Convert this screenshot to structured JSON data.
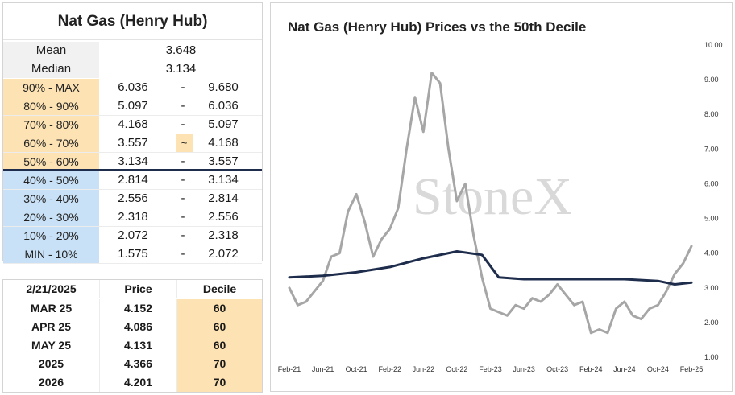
{
  "decile_table": {
    "title": "Nat Gas (Henry Hub)",
    "mean": {
      "label": "Mean",
      "value": "3.648"
    },
    "median": {
      "label": "Median",
      "value": "3.134"
    },
    "rows": [
      {
        "label": "90% - MAX",
        "low": "6.036",
        "sep": "-",
        "high": "9.680",
        "zone": "high",
        "highlight": false
      },
      {
        "label": "80% - 90%",
        "low": "5.097",
        "sep": "-",
        "high": "6.036",
        "zone": "high",
        "highlight": false
      },
      {
        "label": "70% - 80%",
        "low": "4.168",
        "sep": "-",
        "high": "5.097",
        "zone": "high",
        "highlight": false
      },
      {
        "label": "60% - 70%",
        "low": "3.557",
        "sep": "~",
        "high": "4.168",
        "zone": "high",
        "highlight": true
      },
      {
        "label": "50% - 60%",
        "low": "3.134",
        "sep": "-",
        "high": "3.557",
        "zone": "high",
        "highlight": false
      },
      {
        "label": "40% - 50%",
        "low": "2.814",
        "sep": "-",
        "high": "3.134",
        "zone": "low",
        "highlight": false
      },
      {
        "label": "30% - 40%",
        "low": "2.556",
        "sep": "-",
        "high": "2.814",
        "zone": "low",
        "highlight": false
      },
      {
        "label": "20% - 30%",
        "low": "2.318",
        "sep": "-",
        "high": "2.556",
        "zone": "low",
        "highlight": false
      },
      {
        "label": "10% - 20%",
        "low": "2.072",
        "sep": "-",
        "high": "2.318",
        "zone": "low",
        "highlight": false
      },
      {
        "label": "MIN - 10%",
        "low": "1.575",
        "sep": "-",
        "high": "2.072",
        "zone": "low",
        "highlight": false
      }
    ]
  },
  "price_table": {
    "headers": [
      "2/21/2025",
      "Price",
      "Decile"
    ],
    "rows": [
      {
        "contract": "MAR 25",
        "price": "4.152",
        "decile": "60"
      },
      {
        "contract": "APR 25",
        "price": "4.086",
        "decile": "60"
      },
      {
        "contract": "MAY 25",
        "price": "4.131",
        "decile": "60"
      },
      {
        "contract": "2025",
        "price": "4.366",
        "decile": "70"
      },
      {
        "contract": "2026",
        "price": "4.201",
        "decile": "70"
      }
    ]
  },
  "colors": {
    "price_line": "#a6a6a6",
    "decile_line": "#1f2d4d",
    "high_zone": "#fde3b4",
    "low_zone": "#c9e1f6"
  },
  "chart_data": {
    "type": "line",
    "title": "Nat Gas (Henry Hub) Prices vs the 50th Decile",
    "watermark": "StoneX",
    "x_tick_labels": [
      "Feb-21",
      "Jun-21",
      "Oct-21",
      "Feb-22",
      "Jun-22",
      "Oct-22",
      "Feb-23",
      "Jun-23",
      "Oct-23",
      "Feb-24",
      "Jun-24",
      "Oct-24",
      "Feb-25"
    ],
    "y_tick_labels": [
      "1.00",
      "2.00",
      "3.00",
      "4.00",
      "5.00",
      "6.00",
      "7.00",
      "8.00",
      "9.00",
      "10.00"
    ],
    "ylim": [
      1,
      10
    ],
    "y_axis_side": "right",
    "grid": false,
    "series": [
      {
        "role": "price",
        "x": [
          "2021-02",
          "2021-03",
          "2021-04",
          "2021-05",
          "2021-06",
          "2021-07",
          "2021-08",
          "2021-09",
          "2021-10",
          "2021-11",
          "2021-12",
          "2022-01",
          "2022-02",
          "2022-03",
          "2022-04",
          "2022-05",
          "2022-06",
          "2022-07",
          "2022-08",
          "2022-09",
          "2022-10",
          "2022-11",
          "2022-12",
          "2023-01",
          "2023-02",
          "2023-03",
          "2023-04",
          "2023-05",
          "2023-06",
          "2023-07",
          "2023-08",
          "2023-09",
          "2023-10",
          "2023-11",
          "2023-12",
          "2024-01",
          "2024-02",
          "2024-03",
          "2024-04",
          "2024-05",
          "2024-06",
          "2024-07",
          "2024-08",
          "2024-09",
          "2024-10",
          "2024-11",
          "2024-12",
          "2025-01",
          "2025-02"
        ],
        "values": [
          3.0,
          2.5,
          2.6,
          2.9,
          3.2,
          3.9,
          4.0,
          5.2,
          5.7,
          4.9,
          3.9,
          4.4,
          4.7,
          5.3,
          7.0,
          8.5,
          7.5,
          9.2,
          8.9,
          7.0,
          5.5,
          6.0,
          4.5,
          3.3,
          2.4,
          2.3,
          2.2,
          2.5,
          2.4,
          2.7,
          2.6,
          2.8,
          3.1,
          2.8,
          2.5,
          2.6,
          1.7,
          1.8,
          1.7,
          2.4,
          2.6,
          2.2,
          2.1,
          2.4,
          2.5,
          2.9,
          3.4,
          3.7,
          4.2
        ]
      },
      {
        "role": "50th-decile",
        "x": [
          "2021-02",
          "2021-06",
          "2021-10",
          "2022-02",
          "2022-06",
          "2022-10",
          "2023-01",
          "2023-03",
          "2023-06",
          "2023-10",
          "2024-02",
          "2024-06",
          "2024-10",
          "2024-12",
          "2025-02"
        ],
        "values": [
          3.3,
          3.35,
          3.45,
          3.6,
          3.85,
          4.05,
          3.95,
          3.3,
          3.25,
          3.25,
          3.25,
          3.25,
          3.2,
          3.1,
          3.15
        ]
      }
    ]
  }
}
